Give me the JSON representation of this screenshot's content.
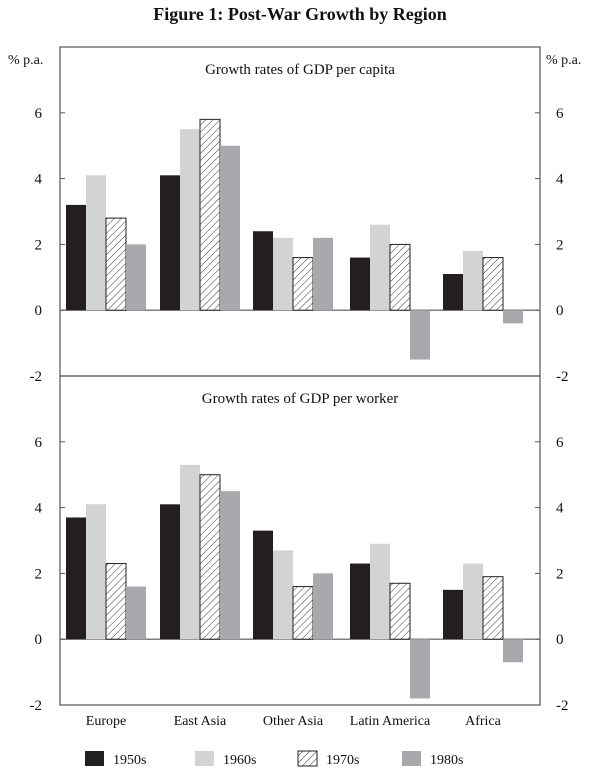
{
  "chart_data": [
    {
      "type": "bar",
      "figure_title": "Figure 1: Post-War Growth by Region",
      "title": "Growth rates of GDP per capita",
      "ylabel": "% p.a.",
      "ylim": [
        -2,
        8
      ],
      "yticks": [
        -2,
        0,
        2,
        4,
        6
      ],
      "categories": [
        "Europe",
        "East Asia",
        "Other Asia",
        "Latin America",
        "Africa"
      ],
      "series": [
        {
          "name": "1950s",
          "values": [
            3.2,
            4.1,
            2.4,
            1.6,
            1.1
          ]
        },
        {
          "name": "1960s",
          "values": [
            4.1,
            5.5,
            2.2,
            2.6,
            1.8
          ]
        },
        {
          "name": "1970s",
          "values": [
            2.8,
            5.8,
            1.6,
            2.0,
            1.6
          ]
        },
        {
          "name": "1980s",
          "values": [
            2.0,
            5.0,
            2.2,
            -1.5,
            -0.4
          ]
        }
      ]
    },
    {
      "type": "bar",
      "title": "Growth rates of GDP per worker",
      "ylabel": "% p.a.",
      "ylim": [
        -2,
        8
      ],
      "yticks": [
        -2,
        0,
        2,
        4,
        6
      ],
      "categories": [
        "Europe",
        "East Asia",
        "Other Asia",
        "Latin America",
        "Africa"
      ],
      "series": [
        {
          "name": "1950s",
          "values": [
            3.7,
            4.1,
            3.3,
            2.3,
            1.5
          ]
        },
        {
          "name": "1960s",
          "values": [
            4.1,
            5.3,
            2.7,
            2.9,
            2.3
          ]
        },
        {
          "name": "1970s",
          "values": [
            2.3,
            5.0,
            1.6,
            1.7,
            1.9
          ]
        },
        {
          "name": "1980s",
          "values": [
            1.6,
            4.5,
            2.0,
            -1.8,
            -0.7
          ]
        }
      ]
    }
  ],
  "legend": [
    "1950s",
    "1960s",
    "1970s",
    "1980s"
  ],
  "colors": {
    "1950s": "#231f20",
    "1960s": "#d1d3d4",
    "1970s": "hatch",
    "1980s": "#a7a9ac"
  }
}
